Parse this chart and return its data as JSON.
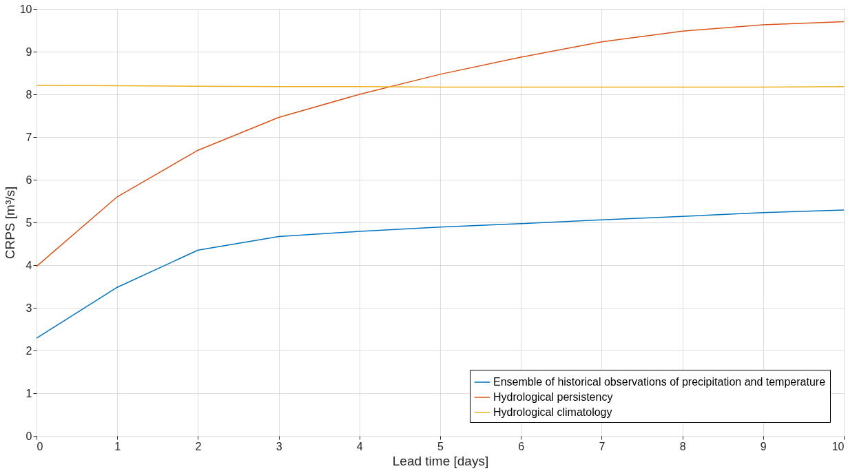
{
  "chart_data": {
    "type": "line",
    "xlabel": "Lead time [days]",
    "ylabel": "CRPS [m³/s]",
    "x": [
      0,
      1,
      2,
      3,
      4,
      5,
      6,
      7,
      8,
      9,
      10
    ],
    "series": [
      {
        "name": "Ensemble of historical observations of precipitation and temperature",
        "color": "#0072bd",
        "values": [
          2.29,
          3.48,
          4.35,
          4.67,
          4.79,
          4.89,
          4.97,
          5.06,
          5.14,
          5.23,
          5.29
        ]
      },
      {
        "name": "Hydrological persistency",
        "color": "#d95319",
        "values": [
          3.97,
          5.6,
          6.69,
          7.46,
          8.0,
          8.47,
          8.87,
          9.23,
          9.48,
          9.63,
          9.7
        ]
      },
      {
        "name": "Hydrological climatology",
        "color": "#edb120",
        "values": [
          8.21,
          8.2,
          8.19,
          8.18,
          8.18,
          8.17,
          8.17,
          8.17,
          8.17,
          8.17,
          8.18
        ]
      }
    ],
    "xlim": [
      0,
      10
    ],
    "xticks": [
      0,
      1,
      2,
      3,
      4,
      5,
      6,
      7,
      8,
      9,
      10
    ],
    "ylim": [
      0,
      10
    ],
    "yticks": [
      0,
      1,
      2,
      3,
      4,
      5,
      6,
      7,
      8,
      9,
      10
    ],
    "grid": true,
    "legend": "bottom right",
    "marker": "none",
    "line_style": "solid"
  }
}
